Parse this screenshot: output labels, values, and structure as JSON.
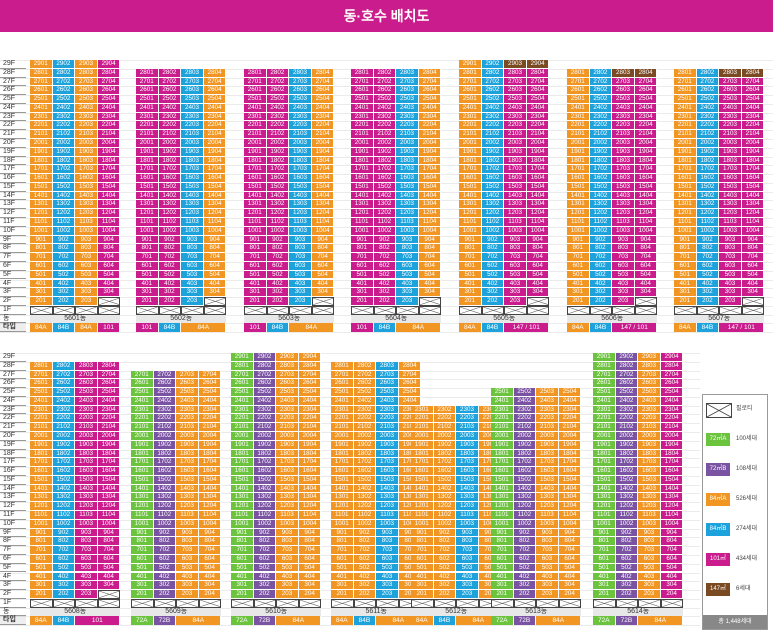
{
  "title": "동·호수 배치도",
  "floor_labels": [
    "29F",
    "28F",
    "27F",
    "26F",
    "25F",
    "24F",
    "23F",
    "22F",
    "21F",
    "20F",
    "19F",
    "18F",
    "17F",
    "16F",
    "15F",
    "14F",
    "13F",
    "12F",
    "11F",
    "10F",
    "9F",
    "8F",
    "7F",
    "6F",
    "5F",
    "4F",
    "3F",
    "2F",
    "1F",
    "동",
    "타입"
  ],
  "colors": {
    "72A": "#6cc33e",
    "72B": "#7b53a3",
    "84A": "#f29623",
    "84B": "#1ea2dc",
    "101": "#cb1c8d",
    "147": "#7a4a22",
    "header": "#cb1c8d"
  },
  "buildings": [
    {
      "name": "5601동",
      "top_floor": 29,
      "types": [
        "84A",
        "84B",
        "84A",
        "101"
      ],
      "type_labels": [
        "84A",
        "84B",
        "84A",
        "101"
      ],
      "pilotis_low": 1,
      "row": 0
    },
    {
      "name": "5602동",
      "top_floor": 28,
      "types": [
        "101",
        "101",
        "84B",
        "84A"
      ],
      "type_labels": [
        "101",
        "84B",
        "84A"
      ],
      "pilotis_low": 1,
      "row": 0
    },
    {
      "name": "5603동",
      "top_floor": 28,
      "types": [
        "101",
        "101",
        "84B",
        "84A"
      ],
      "type_labels": [
        "101",
        "84B",
        "84A"
      ],
      "pilotis_low": 1,
      "row": 0
    },
    {
      "name": "5604동",
      "top_floor": 28,
      "types": [
        "101",
        "101",
        "84B",
        "84A"
      ],
      "type_labels": [
        "101",
        "84B",
        "84A"
      ],
      "pilotis_low": 1,
      "row": 0
    },
    {
      "name": "5605동",
      "top_floor": 29,
      "types": [
        "84A",
        "84B",
        "101",
        "101"
      ],
      "type_labels": [
        "84A",
        "84B",
        "147 / 101"
      ],
      "pilotis_low": 1,
      "row": 0
    },
    {
      "name": "5606동",
      "top_floor": 28,
      "types": [
        "84A",
        "84B",
        "101",
        "101"
      ],
      "type_labels": [
        "84A",
        "84B",
        "147 / 101"
      ],
      "pilotis_low": 1,
      "row": 0
    },
    {
      "name": "5607동",
      "top_floor": 28,
      "types": [
        "84A",
        "84B",
        "101",
        "101"
      ],
      "type_labels": [
        "84A",
        "84B",
        "147 / 101"
      ],
      "pilotis_low": 1,
      "row": 0
    },
    {
      "name": "5608동",
      "top_floor": 28,
      "types": [
        "84A",
        "84B",
        "101",
        "101"
      ],
      "type_labels": [
        "84A",
        "84B",
        "101"
      ],
      "pilotis_low": 1,
      "row": 1
    },
    {
      "name": "5609동",
      "top_floor": 27,
      "types": [
        "72A",
        "72B",
        "84A",
        "84A"
      ],
      "type_labels": [
        "72A",
        "72B",
        "84A"
      ],
      "pilotis_low": 1,
      "row": 1
    },
    {
      "name": "5610동",
      "top_floor": 29,
      "types": [
        "72A",
        "72B",
        "84A",
        "84A"
      ],
      "type_labels": [
        "72A",
        "72B",
        "84A"
      ],
      "pilotis_low": 1,
      "row": 1
    },
    {
      "name": "5611동",
      "top_floor": 28,
      "types": [
        "84A",
        "84A",
        "84B",
        "84A"
      ],
      "type_labels": [
        "84A",
        "84B",
        "84A"
      ],
      "pilotis_low": 1,
      "row": 1
    },
    {
      "name": "5612동",
      "top_floor": 23,
      "types": [
        "84A",
        "84A",
        "84B",
        "84A"
      ],
      "type_labels": [
        "84A",
        "84B",
        "84A"
      ],
      "pilotis_low": 1,
      "row": 1
    },
    {
      "name": "5613동",
      "top_floor": 25,
      "types": [
        "72A",
        "72B",
        "84A",
        "84A"
      ],
      "type_labels": [
        "72A",
        "72B",
        "84A"
      ],
      "pilotis_low": 1,
      "row": 1
    },
    {
      "name": "5614동",
      "top_floor": 29,
      "types": [
        "72A",
        "72B",
        "84A",
        "101"
      ],
      "type_labels": [
        "72A",
        "72B",
        "84A"
      ],
      "pilotis_low": 1,
      "row": 1
    }
  ],
  "legend": {
    "items": [
      {
        "label": "필로티",
        "swatch": "",
        "type": "pil"
      },
      {
        "label": "72㎡A",
        "count": "100세대",
        "type": "72A"
      },
      {
        "label": "72㎡B",
        "count": "108세대",
        "type": "72B"
      },
      {
        "label": "84㎡A",
        "count": "526세대",
        "type": "84A"
      },
      {
        "label": "84㎡B",
        "count": "274세대",
        "type": "84B"
      },
      {
        "label": "101㎡",
        "count": "434세대",
        "type": "101"
      },
      {
        "label": "147㎡",
        "count": "6세대",
        "type": "147"
      }
    ],
    "total": "총 1,448세대"
  }
}
